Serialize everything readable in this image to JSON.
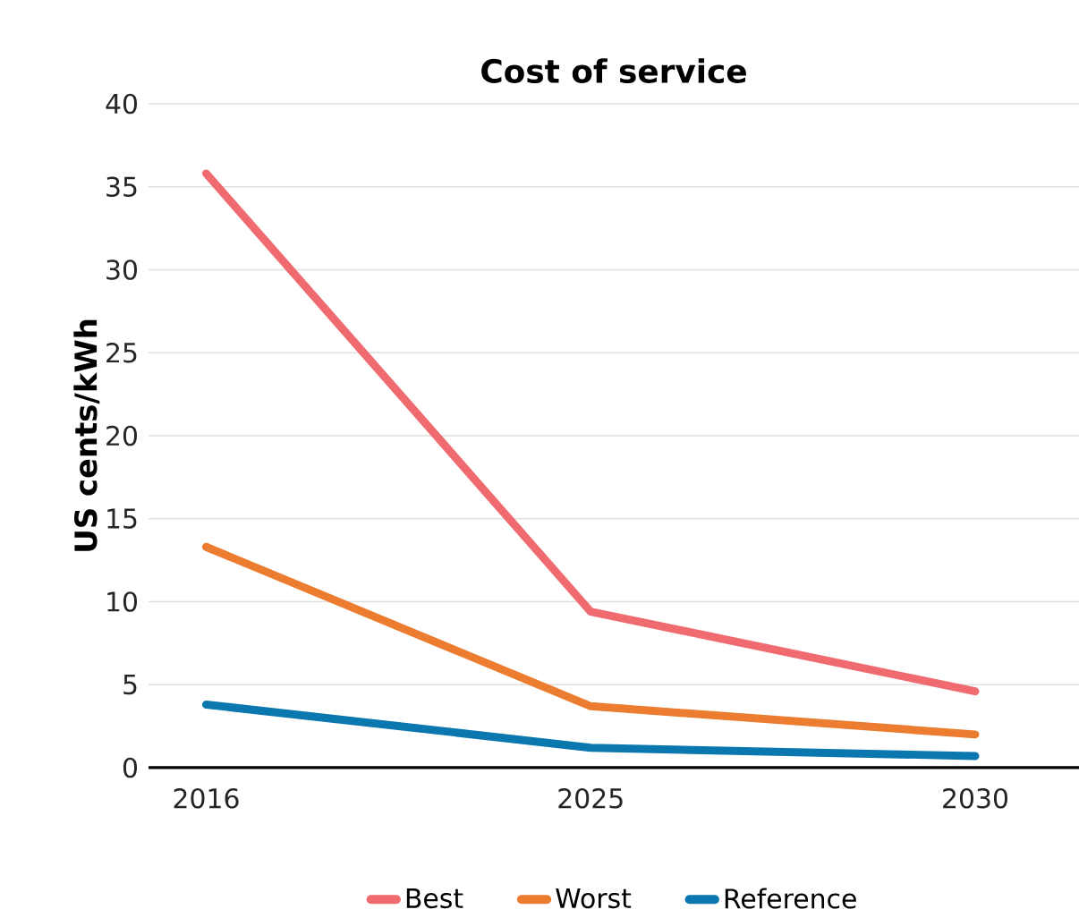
{
  "chart_data": {
    "type": "line",
    "title": "Cost of service",
    "ylabel": "US cents/kWh",
    "categories": [
      "2016",
      "2025",
      "2030"
    ],
    "series": [
      {
        "name": "Best",
        "color": "#f06b70",
        "values": [
          35.8,
          9.4,
          4.6
        ]
      },
      {
        "name": "Worst",
        "color": "#ec7d30",
        "values": [
          13.3,
          3.7,
          2.0
        ]
      },
      {
        "name": "Reference",
        "color": "#0a78ae",
        "values": [
          3.8,
          1.2,
          0.7
        ]
      }
    ],
    "ylim": [
      0,
      40
    ],
    "yticks": [
      0,
      5,
      10,
      15,
      20,
      25,
      30,
      35,
      40
    ],
    "grid": "y",
    "legend": "bottom",
    "marker": "none",
    "line_style": "solid"
  }
}
